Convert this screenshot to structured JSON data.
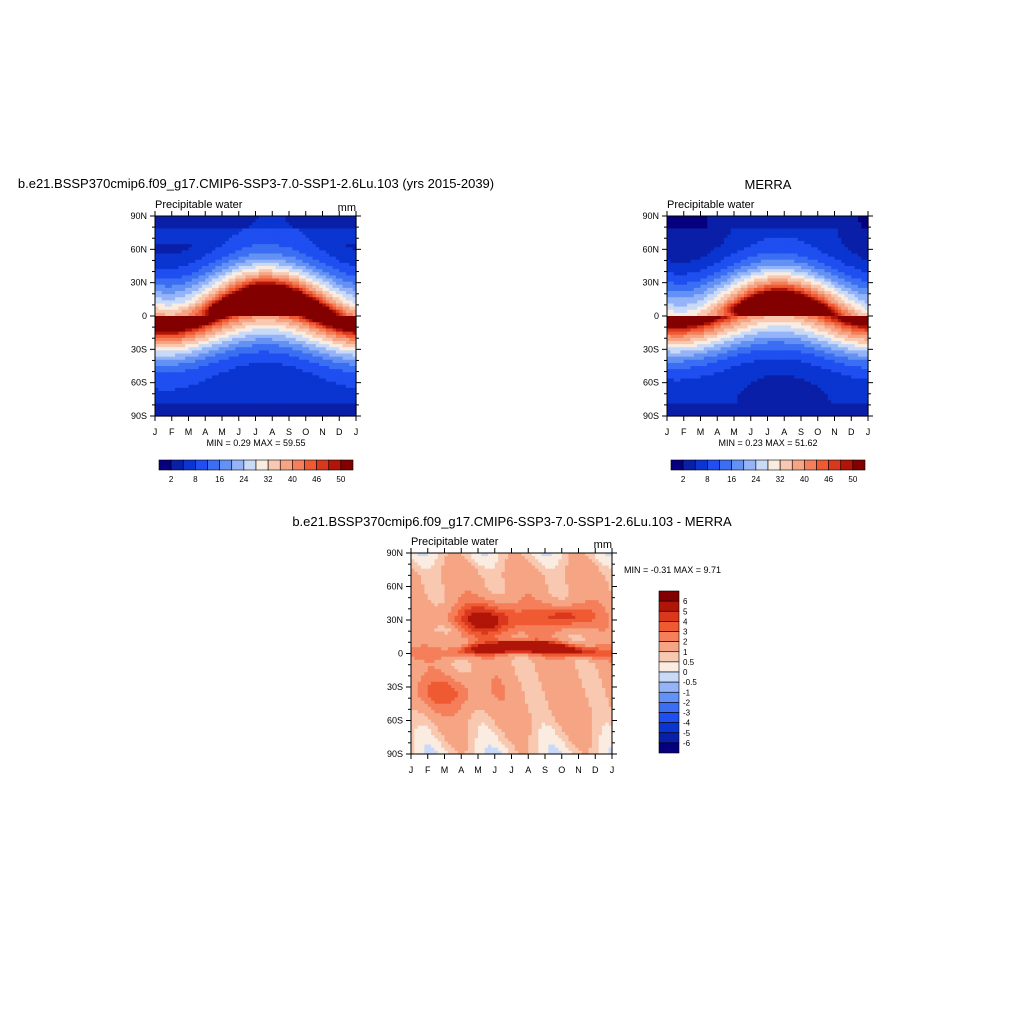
{
  "panels": [
    {
      "title": "b.e21.BSSP370cmip6.f09_g17.CMIP6-SSP3-7.0-SSP1-2.6Lu.103 (yrs 2015-2039)",
      "subtitle": "Precipitable water",
      "units": "mm",
      "stats_text": "MIN =   0.29 MAX =  59.55",
      "colorbar_labels": [
        "2",
        "8",
        "16",
        "24",
        "32",
        "40",
        "46",
        "50"
      ]
    },
    {
      "title": "MERRA",
      "subtitle": "Precipitable water",
      "units": "",
      "stats_text": "MIN =   0.23 MAX =  51.62",
      "colorbar_labels": [
        "2",
        "8",
        "16",
        "24",
        "32",
        "40",
        "46",
        "50"
      ]
    },
    {
      "title": "b.e21.BSSP370cmip6.f09_g17.CMIP6-SSP3-7.0-SSP1-2.6Lu.103 - MERRA",
      "subtitle": "Precipitable water",
      "units": "mm",
      "stats_text": "MIN =  -0.31 MAX =   9.71",
      "colorbar_labels": [
        "6",
        "5",
        "4",
        "3",
        "2",
        "1",
        "0.5",
        "0",
        "-0.5",
        "-1",
        "-2",
        "-3",
        "-4",
        "-5",
        "-6"
      ]
    }
  ],
  "chart_data": [
    {
      "type": "heatmap",
      "title": "b.e21.BSSP370cmip6.f09_g17.CMIP6-SSP3-7.0-SSP1-2.6Lu.103 (yrs 2015-2039)",
      "subtitle": "Precipitable water",
      "units": "mm",
      "x_tick_labels": [
        "J",
        "F",
        "M",
        "A",
        "M",
        "J",
        "J",
        "A",
        "S",
        "O",
        "N",
        "D",
        "J"
      ],
      "y_tick_labels": [
        "90N",
        "60N",
        "30N",
        "0",
        "30S",
        "60S",
        "90S"
      ],
      "ylim": [
        -90,
        90
      ],
      "min": 0.29,
      "max": 59.55,
      "levels": [
        2,
        5,
        8,
        12,
        16,
        20,
        24,
        28,
        32,
        36,
        40,
        43,
        46,
        48,
        50,
        52
      ],
      "colors": [
        "#06007e",
        "#0a1fa8",
        "#0b35d0",
        "#1f4ff0",
        "#3b6ef2",
        "#6391f4",
        "#94b4f7",
        "#c8daf8",
        "#faece0",
        "#f8c8b0",
        "#f6a584",
        "#f47f5a",
        "#ef5a33",
        "#d9381d",
        "#b01508",
        "#820000"
      ],
      "model": "cmip"
    },
    {
      "type": "heatmap",
      "title": "MERRA",
      "subtitle": "Precipitable water",
      "units": "",
      "x_tick_labels": [
        "J",
        "F",
        "M",
        "A",
        "M",
        "J",
        "J",
        "A",
        "S",
        "O",
        "N",
        "D",
        "J"
      ],
      "y_tick_labels": [
        "90N",
        "60N",
        "30N",
        "0",
        "30S",
        "60S",
        "90S"
      ],
      "ylim": [
        -90,
        90
      ],
      "min": 0.23,
      "max": 51.62,
      "levels": [
        2,
        5,
        8,
        12,
        16,
        20,
        24,
        28,
        32,
        36,
        40,
        43,
        46,
        48,
        50,
        52
      ],
      "colors": [
        "#06007e",
        "#0a1fa8",
        "#0b35d0",
        "#1f4ff0",
        "#3b6ef2",
        "#6391f4",
        "#94b4f7",
        "#c8daf8",
        "#faece0",
        "#f8c8b0",
        "#f6a584",
        "#f47f5a",
        "#ef5a33",
        "#d9381d",
        "#b01508",
        "#820000"
      ],
      "model": "merra"
    },
    {
      "type": "heatmap",
      "title": "b.e21.BSSP370cmip6.f09_g17.CMIP6-SSP3-7.0-SSP1-2.6Lu.103 - MERRA",
      "subtitle": "Precipitable water",
      "units": "mm",
      "x_tick_labels": [
        "J",
        "F",
        "M",
        "A",
        "M",
        "J",
        "J",
        "A",
        "S",
        "O",
        "N",
        "D",
        "J"
      ],
      "y_tick_labels": [
        "90N",
        "60N",
        "30N",
        "0",
        "30S",
        "60S",
        "90S"
      ],
      "ylim": [
        -90,
        90
      ],
      "min": -0.31,
      "max": 9.71,
      "levels": [
        -6,
        -5,
        -4,
        -3,
        -2,
        -1,
        -0.5,
        0,
        0.5,
        1,
        2,
        3,
        4,
        5,
        6
      ],
      "colors": [
        "#06007e",
        "#0a1fa8",
        "#0b35d0",
        "#1f4ff0",
        "#3b6ef2",
        "#6391f4",
        "#94b4f7",
        "#c8daf8",
        "#faece0",
        "#f8c8b0",
        "#f6a584",
        "#f47f5a",
        "#ef5a33",
        "#d9381d",
        "#b01508",
        "#820000"
      ],
      "model": "diff"
    }
  ]
}
